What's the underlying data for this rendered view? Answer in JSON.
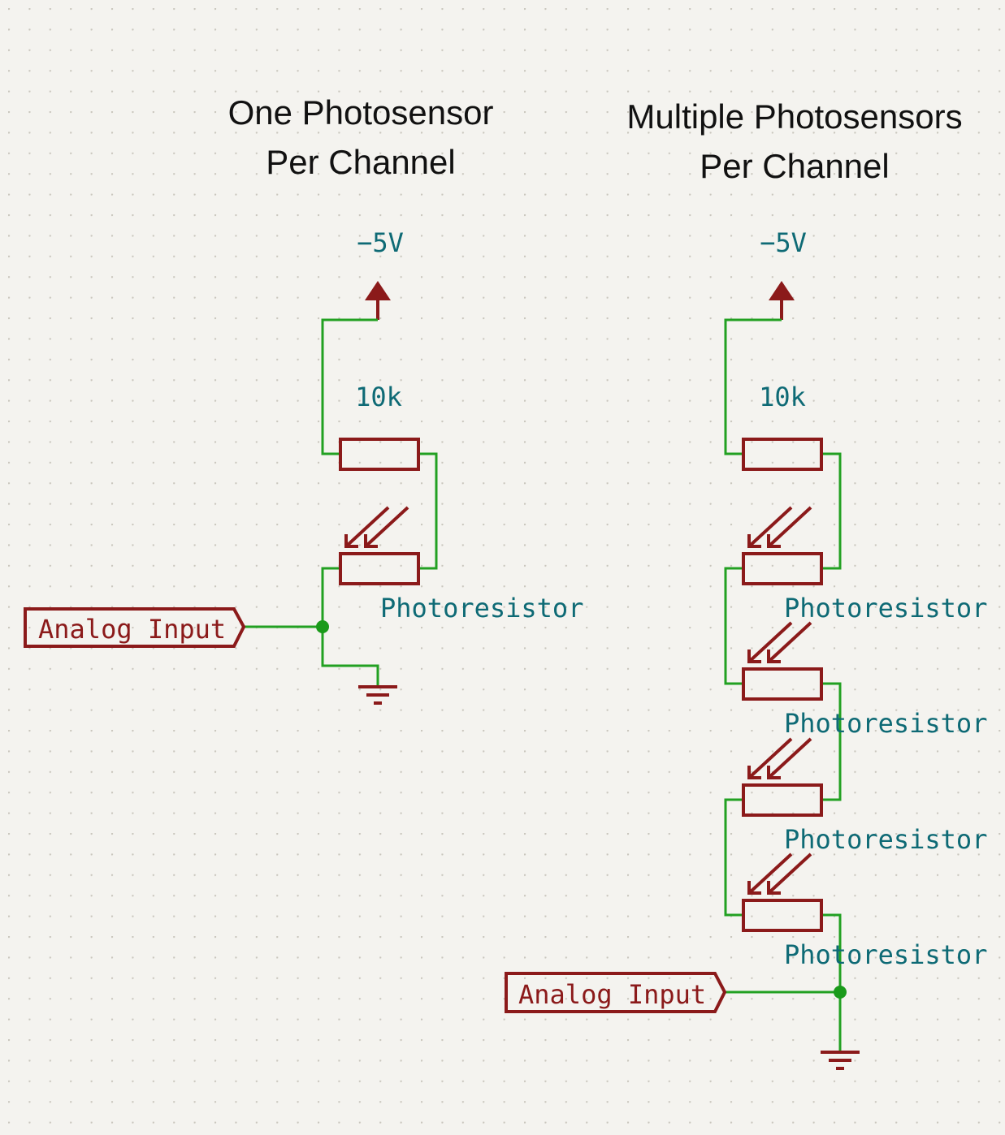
{
  "left": {
    "title_line1": "One Photosensor",
    "title_line2": "Per Channel",
    "supply_label": "−5V",
    "resistor_value": "10k",
    "photoresistor_label": "Photoresistor",
    "input_label": "Analog Input"
  },
  "right": {
    "title_line1": "Multiple Photosensors",
    "title_line2": "Per Channel",
    "supply_label": "−5V",
    "resistor_value": "10k",
    "photoresistors": [
      {
        "label": "Photoresistor"
      },
      {
        "label": "Photoresistor"
      },
      {
        "label": "Photoresistor"
      },
      {
        "label": "Photoresistor"
      }
    ],
    "input_label": "Analog Input"
  },
  "colors": {
    "background": "#f4f3ef",
    "wire": "#22a022",
    "component": "#8b1a1a",
    "value_text": "#0e6a75",
    "title_text": "#111111",
    "grid_dot": "#c9c6bd"
  }
}
